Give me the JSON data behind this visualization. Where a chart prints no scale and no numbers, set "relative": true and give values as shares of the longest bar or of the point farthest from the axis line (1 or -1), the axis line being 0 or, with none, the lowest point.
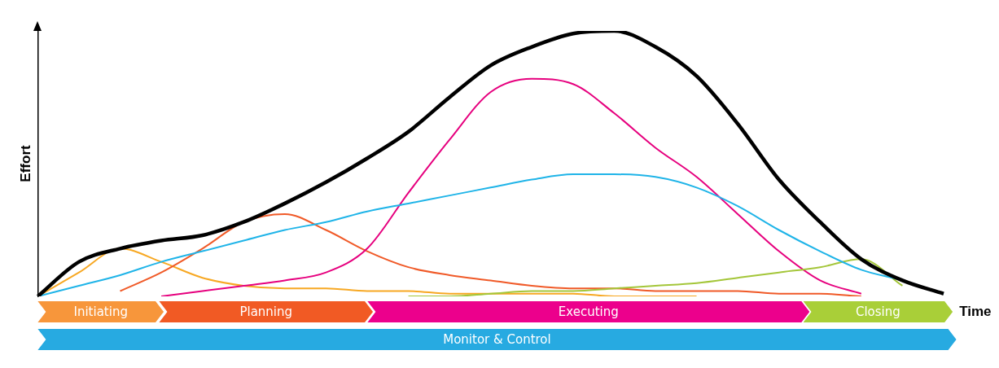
{
  "chart_data": {
    "type": "line",
    "relative": true,
    "xlabel": "Time",
    "ylabel": "Effort",
    "legend": false,
    "grid": false,
    "marker": "none",
    "categories": [
      null,
      null,
      null,
      null,
      null,
      null,
      null,
      null,
      null,
      null,
      null,
      null,
      null,
      null,
      null,
      null,
      null,
      null,
      null,
      null,
      null,
      null,
      null
    ],
    "series": [
      {
        "color": "#f7a823",
        "values": [
          0,
          0.09,
          0.18,
          0.13,
          0.07,
          0.04,
          0.03,
          0.03,
          0.02,
          0.02,
          0.01,
          0.01,
          0.01,
          0.01,
          0,
          0,
          0,
          null,
          null,
          null,
          null,
          null,
          null
        ]
      },
      {
        "color": "#f05a28",
        "values": [
          null,
          null,
          0.02,
          0.09,
          0.18,
          0.28,
          0.31,
          0.25,
          0.17,
          0.11,
          0.08,
          0.06,
          0.04,
          0.03,
          0.03,
          0.02,
          0.02,
          0.02,
          0.01,
          0.01,
          0,
          null,
          null
        ]
      },
      {
        "color": "#e6007e",
        "values": [
          null,
          null,
          null,
          0,
          0.02,
          0.04,
          0.06,
          0.09,
          0.18,
          0.39,
          0.59,
          0.77,
          0.82,
          0.8,
          0.69,
          0.56,
          0.45,
          0.31,
          0.17,
          0.06,
          0.01,
          null,
          null
        ]
      },
      {
        "color": "#a4c639",
        "values": [
          null,
          null,
          null,
          null,
          null,
          null,
          null,
          null,
          null,
          0,
          0,
          0.01,
          0.02,
          0.02,
          0.03,
          0.04,
          0.05,
          0.07,
          0.09,
          0.11,
          0.14,
          0.04,
          null
        ]
      },
      {
        "color": "#1fb4e8",
        "values": [
          0,
          0.04,
          0.08,
          0.13,
          0.17,
          0.21,
          0.25,
          0.28,
          0.32,
          0.35,
          0.38,
          0.41,
          0.44,
          0.46,
          0.46,
          0.45,
          0.41,
          0.34,
          0.25,
          0.17,
          0.1,
          0.06,
          0.01
        ]
      },
      {
        "color": "#000000",
        "values": [
          0,
          0.13,
          0.18,
          0.21,
          0.23,
          0.28,
          0.35,
          0.43,
          0.52,
          0.62,
          0.75,
          0.87,
          0.94,
          0.99,
          1,
          0.94,
          0.83,
          0.65,
          0.44,
          0.28,
          0.14,
          0.06,
          0.01
        ]
      }
    ],
    "annotations": [
      "Initiating",
      "Planning",
      "Executing",
      "Closing",
      "Monitor & Control"
    ]
  }
}
